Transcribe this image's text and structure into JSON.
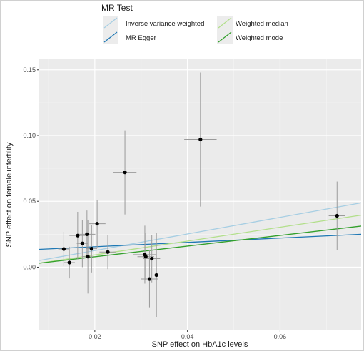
{
  "chart_data": {
    "type": "scatter",
    "title": "",
    "xlabel": "SNP effect on HbA1c levels",
    "ylabel": "SNP effect on female infertility",
    "xlim": [
      0.008,
      0.0775
    ],
    "ylim": [
      -0.048,
      0.158
    ],
    "x_ticks": [
      0.02,
      0.04,
      0.06
    ],
    "x_tick_labels": [
      "0.02",
      "0.04",
      "0.06"
    ],
    "y_ticks": [
      0.0,
      0.05,
      0.1,
      0.15
    ],
    "y_tick_labels": [
      "0.00",
      "0.05",
      "0.10",
      "0.15"
    ],
    "grid": true,
    "legend": {
      "title": "MR Test",
      "position": "top",
      "entries": [
        {
          "name": "Inverse variance weighted",
          "color": "#a6cee3"
        },
        {
          "name": "Weighted median",
          "color": "#b2df8a"
        },
        {
          "name": "MR Egger",
          "color": "#1f78b4"
        },
        {
          "name": "Weighted mode",
          "color": "#33a02c"
        }
      ]
    },
    "points": [
      {
        "x": 0.0133,
        "y": 0.0138,
        "xerr": 0.0012,
        "yerr": 0.013
      },
      {
        "x": 0.0145,
        "y": 0.0035,
        "xerr": 0.0012,
        "yerr": 0.012
      },
      {
        "x": 0.0163,
        "y": 0.024,
        "xerr": 0.0018,
        "yerr": 0.018
      },
      {
        "x": 0.0173,
        "y": 0.018,
        "xerr": 0.0012,
        "yerr": 0.018
      },
      {
        "x": 0.0183,
        "y": 0.025,
        "xerr": 0.0018,
        "yerr": 0.018
      },
      {
        "x": 0.0185,
        "y": 0.008,
        "xerr": 0.0012,
        "yerr": 0.028
      },
      {
        "x": 0.0193,
        "y": 0.014,
        "xerr": 0.0012,
        "yerr": 0.018
      },
      {
        "x": 0.0205,
        "y": 0.033,
        "xerr": 0.0018,
        "yerr": 0.018
      },
      {
        "x": 0.0228,
        "y": 0.0115,
        "xerr": 0.0018,
        "yerr": 0.013
      },
      {
        "x": 0.0265,
        "y": 0.072,
        "xerr": 0.0025,
        "yerr": 0.032
      },
      {
        "x": 0.0308,
        "y": 0.0095,
        "xerr": 0.0025,
        "yerr": 0.022
      },
      {
        "x": 0.031,
        "y": 0.008,
        "xerr": 0.0018,
        "yerr": 0.018
      },
      {
        "x": 0.0318,
        "y": -0.009,
        "xerr": 0.0018,
        "yerr": 0.022
      },
      {
        "x": 0.0323,
        "y": 0.0065,
        "xerr": 0.0018,
        "yerr": 0.018
      },
      {
        "x": 0.0333,
        "y": -0.006,
        "xerr": 0.0035,
        "yerr": 0.032
      },
      {
        "x": 0.0428,
        "y": 0.097,
        "xerr": 0.0035,
        "yerr": 0.051
      },
      {
        "x": 0.0723,
        "y": 0.039,
        "xerr": 0.0018,
        "yerr": 0.026
      }
    ],
    "lines": [
      {
        "name": "Inverse variance weighted",
        "slope": 0.63,
        "intercept": 0
      },
      {
        "name": "MR Egger",
        "slope": 0.165,
        "intercept": 0.0122
      },
      {
        "name": "Weighted median",
        "slope": 0.525,
        "intercept": -0.0012
      },
      {
        "name": "Weighted mode",
        "slope": 0.405,
        "intercept": -0.0002
      }
    ]
  }
}
